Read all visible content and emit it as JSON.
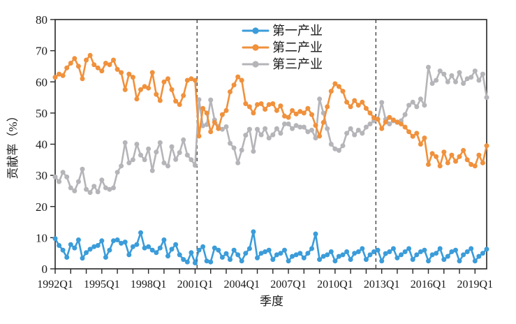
{
  "figure": {
    "background": "#ffffff"
  },
  "colors": {
    "primary_series": "#3B9CD9",
    "secondary_series": "#F0913C",
    "tertiary_series": "#B5B5B9",
    "axis": "#262626",
    "text": "#1a1a1a",
    "vline": "#2b2b2b",
    "background": "#ffffff"
  },
  "chart_data": {
    "type": "line",
    "title": "",
    "xlabel": "季度",
    "ylabel": "贡献率（%）",
    "ylim": [
      0,
      80
    ],
    "y_ticks": [
      0,
      10,
      20,
      30,
      40,
      50,
      60,
      70,
      80
    ],
    "x_tick_label_every_quarters": 12,
    "x_minor_tick_every_quarters": 4,
    "x_tick_labels": [
      "1992Q1",
      "1995Q1",
      "1998Q1",
      "2001Q1",
      "2004Q1",
      "2007Q1",
      "2010Q1",
      "2013Q1",
      "2016Q1",
      "2019Q1"
    ],
    "grid": false,
    "legend_position": "upper-center-inside",
    "vlines": [
      {
        "style": "dashed",
        "x_index": 36.5,
        "near_quarter": "2001Q2"
      },
      {
        "style": "dashed",
        "x_index": 82.5,
        "near_quarter": "2012Q4"
      }
    ],
    "categories": [
      "1992Q1",
      "1992Q2",
      "1992Q3",
      "1992Q4",
      "1993Q1",
      "1993Q2",
      "1993Q3",
      "1993Q4",
      "1994Q1",
      "1994Q2",
      "1994Q3",
      "1994Q4",
      "1995Q1",
      "1995Q2",
      "1995Q3",
      "1995Q4",
      "1996Q1",
      "1996Q2",
      "1996Q3",
      "1996Q4",
      "1997Q1",
      "1997Q2",
      "1997Q3",
      "1997Q4",
      "1998Q1",
      "1998Q2",
      "1998Q3",
      "1998Q4",
      "1999Q1",
      "1999Q2",
      "1999Q3",
      "1999Q4",
      "2000Q1",
      "2000Q2",
      "2000Q3",
      "2000Q4",
      "2001Q1",
      "2001Q2",
      "2001Q3",
      "2001Q4",
      "2002Q1",
      "2002Q2",
      "2002Q3",
      "2002Q4",
      "2003Q1",
      "2003Q2",
      "2003Q3",
      "2003Q4",
      "2004Q1",
      "2004Q2",
      "2004Q3",
      "2004Q4",
      "2005Q1",
      "2005Q2",
      "2005Q3",
      "2005Q4",
      "2006Q1",
      "2006Q2",
      "2006Q3",
      "2006Q4",
      "2007Q1",
      "2007Q2",
      "2007Q3",
      "2007Q4",
      "2008Q1",
      "2008Q2",
      "2008Q3",
      "2008Q4",
      "2009Q1",
      "2009Q2",
      "2009Q3",
      "2009Q4",
      "2010Q1",
      "2010Q2",
      "2010Q3",
      "2010Q4",
      "2011Q1",
      "2011Q2",
      "2011Q3",
      "2011Q4",
      "2012Q1",
      "2012Q2",
      "2012Q3",
      "2012Q4",
      "2013Q1",
      "2013Q2",
      "2013Q3",
      "2013Q4",
      "2014Q1",
      "2014Q2",
      "2014Q3",
      "2014Q4",
      "2015Q1",
      "2015Q2",
      "2015Q3",
      "2015Q4",
      "2016Q1",
      "2016Q2",
      "2016Q3",
      "2016Q4",
      "2017Q1",
      "2017Q2",
      "2017Q3",
      "2017Q4",
      "2018Q1",
      "2018Q2",
      "2018Q3",
      "2018Q4",
      "2019Q1",
      "2019Q2",
      "2019Q3",
      "2019Q4"
    ],
    "series": [
      {
        "name": "第一产业",
        "color": "#3B9CD9",
        "values": [
          9.7,
          7.5,
          6.0,
          3.7,
          7.8,
          6.7,
          9.3,
          3.4,
          5.2,
          6.3,
          7.1,
          7.5,
          9.0,
          3.7,
          6.0,
          9.0,
          9.3,
          8.2,
          8.6,
          4.5,
          7.1,
          7.8,
          11.6,
          6.7,
          7.1,
          6.0,
          5.2,
          6.7,
          9.3,
          4.1,
          6.3,
          7.8,
          4.5,
          3.0,
          2.2,
          5.2,
          1.9,
          6.0,
          7.1,
          2.5,
          2.2,
          6.7,
          6.0,
          3.7,
          4.9,
          3.0,
          6.0,
          4.5,
          2.5,
          5.0,
          6.5,
          11.9,
          3.5,
          5.0,
          5.5,
          6.0,
          3.0,
          4.5,
          5.0,
          6.0,
          2.5,
          4.0,
          4.5,
          5.0,
          3.5,
          5.0,
          6.5,
          11.2,
          3.0,
          4.0,
          4.5,
          5.5,
          2.5,
          4.0,
          4.5,
          5.5,
          3.0,
          5.0,
          5.5,
          6.5,
          3.0,
          4.5,
          5.5,
          6.0,
          2.5,
          4.9,
          5.5,
          6.5,
          3.5,
          4.5,
          5.5,
          6.5,
          3.0,
          4.5,
          5.5,
          6.0,
          2.5,
          4.5,
          5.0,
          6.5,
          3.0,
          4.0,
          5.5,
          6.0,
          2.5,
          4.5,
          5.5,
          6.5,
          2.5,
          4.0,
          5.0,
          6.3
        ]
      },
      {
        "name": "第二产业",
        "color": "#F0913C",
        "values": [
          61.5,
          62.5,
          62.0,
          64.5,
          66.0,
          67.5,
          65.0,
          61.0,
          67.0,
          68.5,
          65.5,
          64.5,
          63.5,
          66.0,
          65.5,
          67.0,
          64.0,
          63.0,
          57.5,
          62.5,
          61.5,
          54.5,
          57.5,
          58.5,
          58.0,
          63.0,
          56.0,
          54.0,
          60.0,
          61.0,
          57.5,
          53.8,
          52.7,
          55.6,
          60.5,
          61.0,
          60.5,
          42.6,
          51.5,
          50.0,
          44.0,
          47.0,
          45.0,
          49.5,
          50.8,
          56.8,
          59.0,
          61.6,
          60.5,
          53.0,
          52.0,
          50.0,
          52.7,
          53.0,
          51.2,
          52.7,
          53.0,
          50.8,
          52.3,
          49.0,
          48.6,
          50.8,
          49.7,
          50.5,
          50.0,
          51.5,
          49.5,
          46.0,
          42.6,
          47.0,
          52.0,
          57.0,
          59.4,
          58.5,
          57.0,
          53.5,
          52.0,
          54.0,
          52.5,
          53.5,
          51.5,
          50.0,
          48.5,
          48.0,
          45.0,
          47.1,
          48.6,
          47.8,
          47.1,
          46.5,
          45.5,
          44.0,
          42.5,
          43.5,
          40.0,
          42.0,
          33.5,
          37.0,
          36.0,
          33.0,
          37.5,
          34.0,
          36.5,
          34.5,
          36.0,
          38.0,
          35.0,
          33.5,
          33.0,
          36.5,
          34.0,
          39.5
        ]
      },
      {
        "name": "第三产业",
        "color": "#B5B5B9",
        "values": [
          29.5,
          28.0,
          31.0,
          29.5,
          26.0,
          25.0,
          28.0,
          32.0,
          25.5,
          24.5,
          26.5,
          24.7,
          28.5,
          26.0,
          25.5,
          26.0,
          31.0,
          33.0,
          40.5,
          34.0,
          35.0,
          40.0,
          36.5,
          35.0,
          38.5,
          31.5,
          37.5,
          40.5,
          34.0,
          33.0,
          39.2,
          35.1,
          37.3,
          41.4,
          36.5,
          35.0,
          33.2,
          54.3,
          45.9,
          46.3,
          54.2,
          47.8,
          45.6,
          44.8,
          45.6,
          40.3,
          38.8,
          34.0,
          38.1,
          42.9,
          44.8,
          37.7,
          44.8,
          43.0,
          45.0,
          42.0,
          43.0,
          45.0,
          43.5,
          46.5,
          46.5,
          45.0,
          46.0,
          45.5,
          45.5,
          44.0,
          44.5,
          42.0,
          54.5,
          50.0,
          45.0,
          40.0,
          38.5,
          38.0,
          39.5,
          43.5,
          45.0,
          43.0,
          44.5,
          43.5,
          45.5,
          46.5,
          47.5,
          48.0,
          53.4,
          48.0,
          46.5,
          47.5,
          47.0,
          47.5,
          49.5,
          52.5,
          53.5,
          52.0,
          54.5,
          52.5,
          64.7,
          59.5,
          60.5,
          63.5,
          62.5,
          60.0,
          62.0,
          60.0,
          63.0,
          59.5,
          61.0,
          61.5,
          63.5,
          60.5,
          62.5,
          55.0
        ]
      }
    ]
  }
}
